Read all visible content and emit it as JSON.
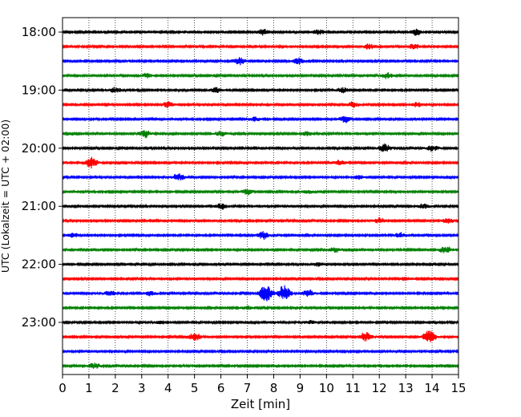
{
  "chart_data": {
    "type": "line",
    "xlabel": "Zeit  [min]",
    "ylabel": "UTC (Lokalzeit = UTC + 02:00)",
    "xlim": [
      0,
      15
    ],
    "x_ticks": [
      "0",
      "1",
      "2",
      "3",
      "4",
      "5",
      "6",
      "7",
      "8",
      "9",
      "10",
      "11",
      "12",
      "13",
      "14",
      "15"
    ],
    "y_tick_labels": [
      "18:00",
      "19:00",
      "20:00",
      "21:00",
      "22:00",
      "23:00"
    ],
    "grid": "vertical dotted lines at each minute",
    "trace_colors": [
      "#000000",
      "#ff0000",
      "#0000ff",
      "#008000"
    ],
    "trace_interval_minutes": 15,
    "traces": [
      {
        "start": "18:00",
        "color": "#000000",
        "events": [
          [
            7.6,
            0.55
          ],
          [
            9.7,
            0.45
          ],
          [
            13.4,
            0.6
          ]
        ]
      },
      {
        "start": "18:15",
        "color": "#ff0000",
        "events": [
          [
            11.6,
            0.5
          ],
          [
            13.3,
            0.5
          ]
        ]
      },
      {
        "start": "18:30",
        "color": "#0000ff",
        "events": [
          [
            6.7,
            0.7
          ],
          [
            8.9,
            0.6
          ]
        ]
      },
      {
        "start": "18:45",
        "color": "#008000",
        "events": [
          [
            3.2,
            0.4
          ],
          [
            12.3,
            0.55
          ]
        ]
      },
      {
        "start": "19:00",
        "color": "#000000",
        "events": [
          [
            2.0,
            0.5
          ],
          [
            5.8,
            0.5
          ],
          [
            10.6,
            0.45
          ]
        ]
      },
      {
        "start": "19:15",
        "color": "#ff0000",
        "events": [
          [
            4.0,
            0.55
          ],
          [
            11.0,
            0.55
          ],
          [
            13.4,
            0.4
          ]
        ]
      },
      {
        "start": "19:30",
        "color": "#0000ff",
        "events": [
          [
            7.3,
            0.45
          ],
          [
            10.7,
            0.6
          ]
        ]
      },
      {
        "start": "19:45",
        "color": "#008000",
        "events": [
          [
            3.1,
            0.7
          ],
          [
            6.0,
            0.5
          ],
          [
            9.2,
            0.5
          ]
        ]
      },
      {
        "start": "20:00",
        "color": "#000000",
        "events": [
          [
            12.2,
            0.75
          ],
          [
            14.0,
            0.6
          ]
        ]
      },
      {
        "start": "20:15",
        "color": "#ff0000",
        "events": [
          [
            1.1,
            1.0
          ],
          [
            10.5,
            0.45
          ]
        ]
      },
      {
        "start": "20:30",
        "color": "#0000ff",
        "events": [
          [
            4.4,
            0.65
          ],
          [
            11.2,
            0.4
          ]
        ]
      },
      {
        "start": "20:45",
        "color": "#008000",
        "events": [
          [
            7.0,
            0.5
          ],
          [
            9.3,
            0.4
          ]
        ]
      },
      {
        "start": "21:00",
        "color": "#000000",
        "events": [
          [
            6.0,
            0.55
          ],
          [
            13.7,
            0.45
          ]
        ]
      },
      {
        "start": "21:15",
        "color": "#ff0000",
        "events": [
          [
            12.0,
            0.5
          ],
          [
            14.6,
            0.45
          ]
        ]
      },
      {
        "start": "21:30",
        "color": "#0000ff",
        "events": [
          [
            0.4,
            0.45
          ],
          [
            7.6,
            0.7
          ],
          [
            12.8,
            0.4
          ]
        ]
      },
      {
        "start": "21:45",
        "color": "#008000",
        "events": [
          [
            10.3,
            0.45
          ],
          [
            14.5,
            0.65
          ]
        ]
      },
      {
        "start": "22:00",
        "color": "#000000",
        "events": [
          [
            9.7,
            0.35
          ]
        ]
      },
      {
        "start": "22:15",
        "color": "#ff0000",
        "events": [
          [
            13.0,
            0.3
          ]
        ]
      },
      {
        "start": "22:30",
        "color": "#0000ff",
        "events": [
          [
            1.8,
            0.5
          ],
          [
            3.3,
            0.45
          ],
          [
            7.7,
            1.9
          ],
          [
            8.4,
            1.5
          ],
          [
            9.3,
            0.7
          ]
        ]
      },
      {
        "start": "22:45",
        "color": "#008000",
        "events": [
          [
            7.0,
            0.35
          ]
        ]
      },
      {
        "start": "23:00",
        "color": "#000000",
        "events": [
          [
            3.7,
            0.35
          ],
          [
            9.4,
            0.3
          ]
        ]
      },
      {
        "start": "23:15",
        "color": "#ff0000",
        "events": [
          [
            5.0,
            0.7
          ],
          [
            11.5,
            0.95
          ],
          [
            13.9,
            1.25
          ]
        ]
      },
      {
        "start": "23:30",
        "color": "#0000ff",
        "events": []
      },
      {
        "start": "23:45",
        "color": "#008000",
        "events": [
          [
            1.2,
            0.5
          ]
        ]
      }
    ]
  }
}
